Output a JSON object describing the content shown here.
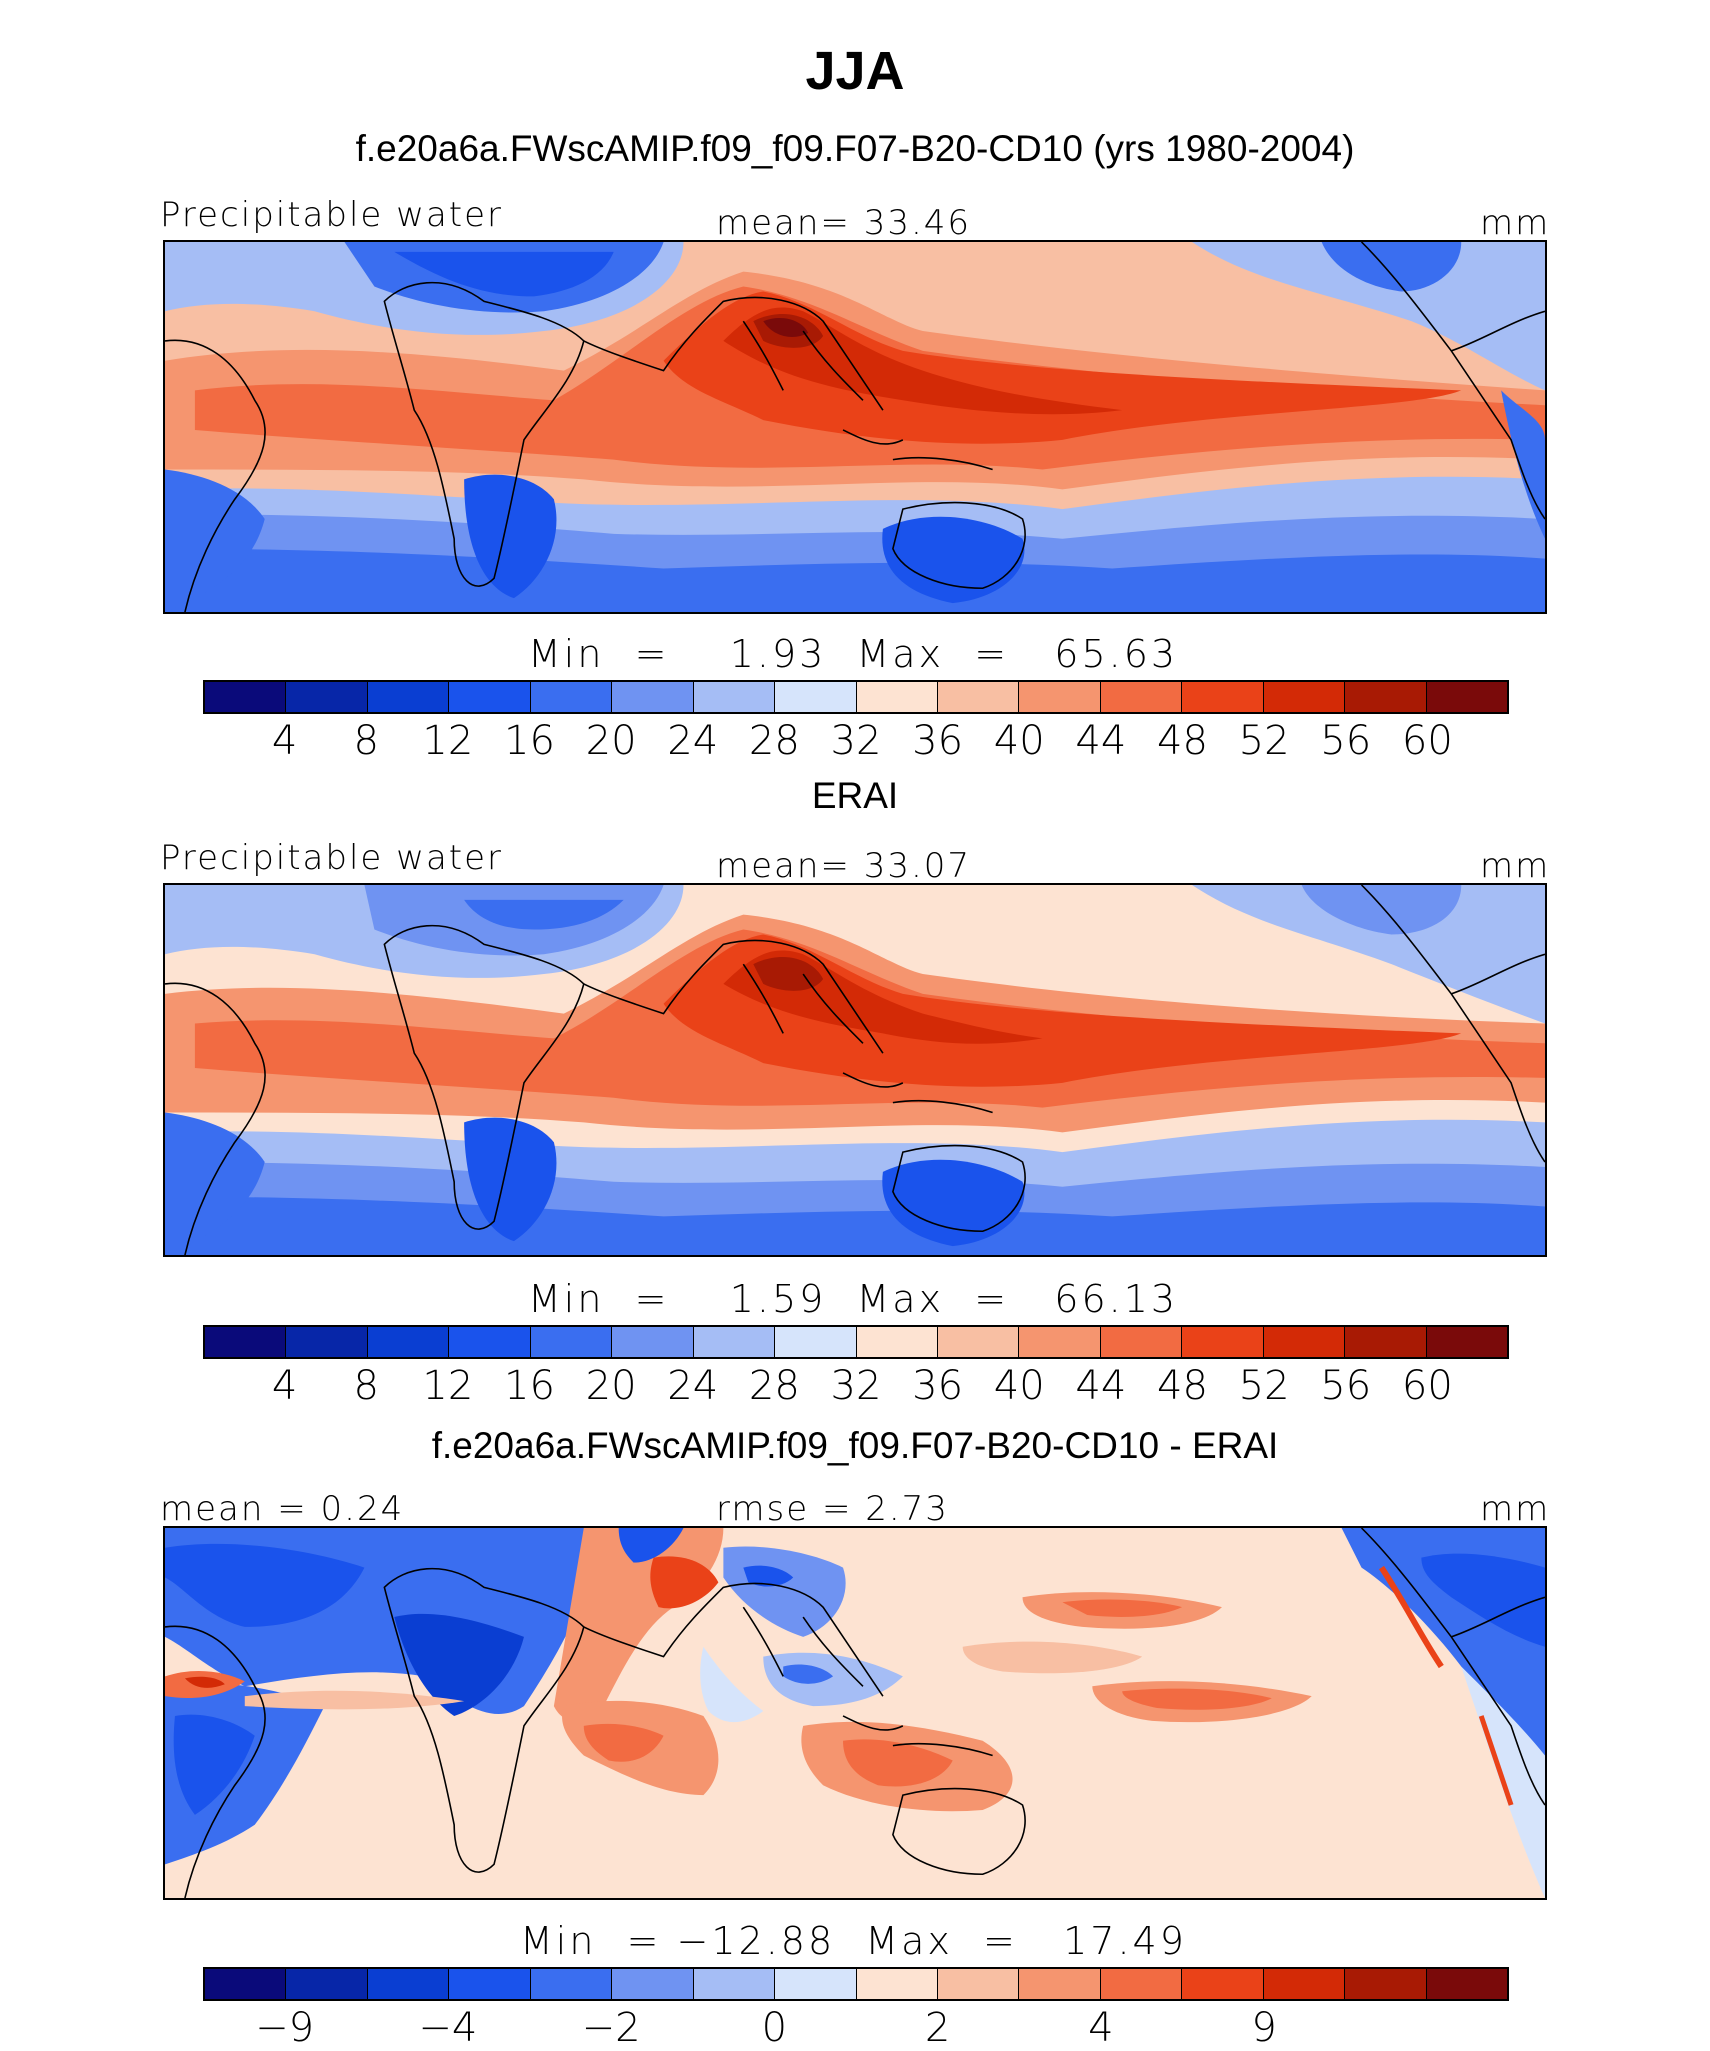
{
  "title": "JJA",
  "panels": [
    {
      "heading": "f.e20a6a.FWscAMIP.f09_f09.F07-B20-CD10 (yrs 1980-2004)",
      "left_label": "Precipitable water",
      "center_label": "mean=   33.46",
      "right_label": "mm",
      "minmax": "Min  =    1.93  Max  =   65.63",
      "colorbar": {
        "colors": [
          "#0a0a7a",
          "#0726a8",
          "#0a3ed2",
          "#1a53ec",
          "#3a6ef0",
          "#6f93f2",
          "#a5bdf5",
          "#d6e4fb",
          "#fde3d2",
          "#f8bfa3",
          "#f5956f",
          "#f26b42",
          "#ea4218",
          "#d32a06",
          "#a81a04",
          "#7a0a0a"
        ],
        "ticks": [
          "4",
          "8",
          "12",
          "16",
          "20",
          "24",
          "28",
          "32",
          "36",
          "40",
          "44",
          "48",
          "52",
          "56",
          "60"
        ]
      }
    },
    {
      "heading": "ERAI",
      "left_label": "Precipitable water",
      "center_label": "mean=   33.07",
      "right_label": "mm",
      "minmax": "Min  =    1.59  Max  =   66.13",
      "colorbar": {
        "colors": [
          "#0a0a7a",
          "#0726a8",
          "#0a3ed2",
          "#1a53ec",
          "#3a6ef0",
          "#6f93f2",
          "#a5bdf5",
          "#d6e4fb",
          "#fde3d2",
          "#f8bfa3",
          "#f5956f",
          "#f26b42",
          "#ea4218",
          "#d32a06",
          "#a81a04",
          "#7a0a0a"
        ],
        "ticks": [
          "4",
          "8",
          "12",
          "16",
          "20",
          "24",
          "28",
          "32",
          "36",
          "40",
          "44",
          "48",
          "52",
          "56",
          "60"
        ]
      }
    },
    {
      "heading": "f.e20a6a.FWscAMIP.f09_f09.F07-B20-CD10 - ERAI",
      "left_label": "mean =    0.24",
      "center_label": "rmse =    2.73",
      "right_label": "mm",
      "minmax": "Min  = −12.88  Max  =   17.49",
      "colorbar": {
        "colors": [
          "#0a0a7a",
          "#0726a8",
          "#0a3ed2",
          "#1a53ec",
          "#3a6ef0",
          "#6f93f2",
          "#a5bdf5",
          "#d6e4fb",
          "#fde3d2",
          "#f8bfa3",
          "#f5956f",
          "#f26b42",
          "#ea4218",
          "#d32a06",
          "#a81a04",
          "#7a0a0a"
        ],
        "ticks": [
          "−9",
          "−4",
          "−2",
          "0",
          "2",
          "4",
          "9"
        ]
      }
    }
  ]
}
